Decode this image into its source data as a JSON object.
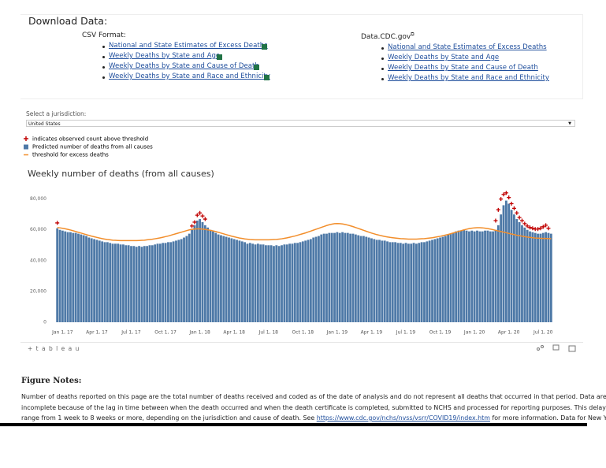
{
  "download": {
    "title": "Download Data:",
    "csv": {
      "label": "CSV Format:",
      "links": [
        "National and State Estimates of Excess Deaths",
        "Weekly Deaths by State and Age",
        "Weekly Deaths by State and Cause of Death",
        "Weekly Deaths by State and Race and Ethnicity"
      ]
    },
    "cdc": {
      "label": "Data.CDC.gov",
      "links": [
        "National and State Estimates of Excess Deaths",
        "Weekly Deaths by State and Age",
        "Weekly Deaths by State and Cause of Death",
        "Weekly Deaths by State and Race and Ethnicity"
      ]
    }
  },
  "jurisdiction": {
    "label": "Select a jurisdiction:",
    "value": "United States"
  },
  "chart_data": {
    "type": "bar",
    "title": "Weekly number of deaths (from all causes)",
    "categories": [
      null,
      null,
      "Jan 1, 17",
      null,
      null,
      null,
      null,
      null,
      null,
      null,
      null,
      null,
      null,
      null,
      null,
      "Apr 1, 17",
      null,
      null,
      null,
      null,
      null,
      null,
      null,
      null,
      null,
      null,
      null,
      null,
      "Jul 1, 17",
      null,
      null,
      null,
      null,
      null,
      null,
      null,
      null,
      null,
      null,
      null,
      null,
      "Oct 1, 17",
      null,
      null,
      null,
      null,
      null,
      null,
      null,
      null,
      null,
      null,
      null,
      null,
      "Jan 1, 18",
      null,
      null,
      null,
      null,
      null,
      null,
      null,
      null,
      null,
      null,
      null,
      null,
      "Apr 1, 18",
      null,
      null,
      null,
      null,
      null,
      null,
      null,
      null,
      null,
      null,
      null,
      null,
      "Jul 1, 18",
      null,
      null,
      null,
      null,
      null,
      null,
      null,
      null,
      null,
      null,
      null,
      null,
      "Oct 1, 18",
      null,
      null,
      null,
      null,
      null,
      null,
      null,
      null,
      null,
      null,
      null,
      null,
      "Jan 1, 19",
      null,
      null,
      null,
      null,
      null,
      null,
      null,
      null,
      null,
      null,
      null,
      null,
      "Apr 1, 19",
      null,
      null,
      null,
      null,
      null,
      null,
      null,
      null,
      null,
      null,
      null,
      null,
      "Jul 1, 19",
      null,
      null,
      null,
      null,
      null,
      null,
      null,
      null,
      null,
      null,
      null,
      null,
      "Oct 1, 19",
      null,
      null,
      null,
      null,
      null,
      null,
      null,
      null,
      null,
      null,
      null,
      null,
      "Jan 1, 20",
      null,
      null,
      null,
      null,
      null,
      null,
      null,
      null,
      null,
      null,
      null,
      null,
      "Apr 1, 20",
      null,
      null,
      null,
      null,
      null,
      null,
      null,
      null,
      null,
      null,
      null,
      null,
      "Jul 1, 20",
      null,
      null,
      null
    ],
    "series": [
      {
        "name": "Predicted number of deaths from all causes",
        "type": "bar",
        "color": "#4e79a7",
        "values": [
          61000,
          60000,
          59500,
          59000,
          58500,
          58500,
          58000,
          58000,
          57500,
          57000,
          56500,
          56000,
          55000,
          54500,
          54000,
          53500,
          53000,
          52500,
          52000,
          52000,
          51500,
          51000,
          51000,
          51000,
          50500,
          50500,
          50000,
          50000,
          49500,
          49500,
          49000,
          49500,
          49000,
          49500,
          49500,
          50000,
          50000,
          50500,
          51000,
          51000,
          51500,
          51500,
          52000,
          52000,
          52500,
          53000,
          53500,
          54000,
          55000,
          56000,
          57500,
          60000,
          63000,
          66000,
          67000,
          65000,
          63000,
          61500,
          60000,
          59000,
          58000,
          57000,
          56500,
          56000,
          55500,
          55000,
          54500,
          54000,
          53500,
          53000,
          52500,
          52000,
          51000,
          51500,
          51000,
          50500,
          51000,
          50500,
          50500,
          50000,
          50000,
          50000,
          49500,
          50000,
          49500,
          50000,
          50500,
          50500,
          51000,
          51000,
          51500,
          51500,
          52000,
          52500,
          53000,
          53500,
          54000,
          55000,
          55500,
          56000,
          57000,
          57500,
          57500,
          58000,
          58000,
          58000,
          58500,
          58000,
          58500,
          58000,
          58000,
          57500,
          57500,
          57000,
          56500,
          56000,
          56000,
          55500,
          55000,
          54500,
          54000,
          53500,
          53500,
          53000,
          53000,
          52500,
          52000,
          52000,
          52000,
          51500,
          51500,
          51000,
          51500,
          51000,
          51000,
          51500,
          51000,
          51500,
          52000,
          52000,
          52500,
          53000,
          53500,
          54000,
          54500,
          55000,
          55500,
          56000,
          57000,
          57500,
          58000,
          59000,
          59500,
          59500,
          60000,
          59500,
          59000,
          59500,
          59000,
          59500,
          59000,
          59000,
          59500,
          59500,
          59000,
          59000,
          60000,
          63000,
          70000,
          76000,
          79000,
          77000,
          73000,
          70000,
          67000,
          65000,
          63000,
          61500,
          60000,
          59000,
          58500,
          58000,
          57500,
          57500,
          58000,
          58500,
          58000,
          57500
        ]
      },
      {
        "name": "threshold for excess deaths",
        "type": "line",
        "color": "#f28e2b",
        "values": [
          61500,
          61300,
          61000,
          60700,
          60300,
          59900,
          59400,
          58900,
          58400,
          57900,
          57400,
          56900,
          56400,
          55900,
          55500,
          55100,
          54700,
          54300,
          54000,
          53700,
          53500,
          53300,
          53200,
          53100,
          53000,
          53000,
          53000,
          53000,
          53000,
          53000,
          53000,
          53100,
          53200,
          53300,
          53500,
          53700,
          53900,
          54200,
          54500,
          54800,
          55200,
          55600,
          56000,
          56500,
          57000,
          57500,
          58000,
          58500,
          59000,
          59500,
          60000,
          60300,
          60500,
          60600,
          60600,
          60500,
          60300,
          60000,
          59700,
          59300,
          58900,
          58400,
          57900,
          57400,
          56900,
          56400,
          55900,
          55500,
          55100,
          54700,
          54400,
          54100,
          53900,
          53700,
          53600,
          53500,
          53500,
          53500,
          53500,
          53500,
          53500,
          53600,
          53700,
          53800,
          54000,
          54200,
          54500,
          54800,
          55200,
          55600,
          56000,
          56500,
          57000,
          57500,
          58000,
          58600,
          59200,
          59800,
          60400,
          61000,
          61600,
          62200,
          62800,
          63300,
          63700,
          64000,
          64100,
          64000,
          63800,
          63500,
          63100,
          62600,
          62100,
          61500,
          60900,
          60300,
          59700,
          59100,
          58500,
          57900,
          57400,
          56900,
          56500,
          56100,
          55700,
          55400,
          55100,
          54900,
          54700,
          54500,
          54300,
          54200,
          54100,
          54000,
          54000,
          54000,
          54000,
          54100,
          54200,
          54300,
          54500,
          54700,
          54900,
          55200,
          55500,
          55800,
          56200,
          56600,
          57000,
          57500,
          58000,
          58500,
          59000,
          59500,
          60000,
          60400,
          60800,
          61100,
          61300,
          61400,
          61400,
          61300,
          61100,
          60800,
          60500,
          60100,
          59700,
          59300,
          58900,
          58500,
          58100,
          57700,
          57300,
          56900,
          56500,
          56200,
          55900,
          55600,
          55300,
          55100,
          54900,
          54700,
          54600,
          54500,
          54400,
          54400,
          54300,
          54300
        ]
      },
      {
        "name": "indicates observed count above threshold",
        "type": "plus",
        "color": "#c00000",
        "values": [
          64500,
          null,
          null,
          null,
          null,
          null,
          null,
          null,
          null,
          null,
          null,
          null,
          null,
          null,
          null,
          null,
          null,
          null,
          null,
          null,
          null,
          null,
          null,
          null,
          null,
          null,
          null,
          null,
          null,
          null,
          null,
          null,
          null,
          null,
          null,
          null,
          null,
          null,
          null,
          null,
          null,
          null,
          null,
          null,
          null,
          null,
          null,
          null,
          null,
          null,
          null,
          62500,
          65000,
          69500,
          71000,
          69000,
          67000,
          null,
          null,
          null,
          null,
          null,
          null,
          null,
          null,
          null,
          null,
          null,
          null,
          null,
          null,
          null,
          null,
          null,
          null,
          null,
          null,
          null,
          null,
          null,
          null,
          null,
          null,
          null,
          null,
          null,
          null,
          null,
          null,
          null,
          null,
          null,
          null,
          null,
          null,
          null,
          null,
          null,
          null,
          null,
          null,
          null,
          null,
          null,
          null,
          null,
          null,
          null,
          null,
          null,
          null,
          null,
          null,
          null,
          null,
          null,
          null,
          null,
          null,
          null,
          null,
          null,
          null,
          null,
          null,
          null,
          null,
          null,
          null,
          null,
          null,
          null,
          null,
          null,
          null,
          null,
          null,
          null,
          null,
          null,
          null,
          null,
          null,
          null,
          null,
          null,
          null,
          null,
          null,
          null,
          null,
          null,
          null,
          null,
          null,
          null,
          null,
          null,
          null,
          null,
          null,
          null,
          null,
          null,
          null,
          null,
          66000,
          73000,
          80000,
          83000,
          84000,
          81000,
          77000,
          74000,
          71000,
          68000,
          66000,
          64000,
          62500,
          61500,
          61000,
          60500,
          60500,
          61000,
          62000,
          63000,
          61000,
          null
        ]
      }
    ],
    "ylim": [
      0,
      88000
    ],
    "yticks": [
      0,
      {
        "value": 20000,
        "label": "20,000"
      },
      {
        "value": 40000,
        "label": "40,000"
      },
      {
        "value": 60000,
        "label": "60,000"
      },
      {
        "value": 80000,
        "label": "80,000"
      }
    ],
    "grid": false
  },
  "tableau_label": "+ t a b l e a u",
  "notes": {
    "title": "Figure Notes:",
    "line1": "Number of deaths reported on this page are the total number of deaths received and coded as of the date of analysis and do not represent all deaths that occurred in that period. Data are",
    "line2": "incomplete because of the lag in time between when the death occurred and when the death certificate is completed, submitted to NCHS and processed for reporting purposes. This delay can",
    "line3_before": "range from 1 week to 8 weeks or more, depending on the jurisdiction and cause of death. See ",
    "link": "https://www.cdc.gov/nchs/nvss/vsrr/COVID19/index.htm",
    "line3_after": " for more information. Data for New York"
  }
}
